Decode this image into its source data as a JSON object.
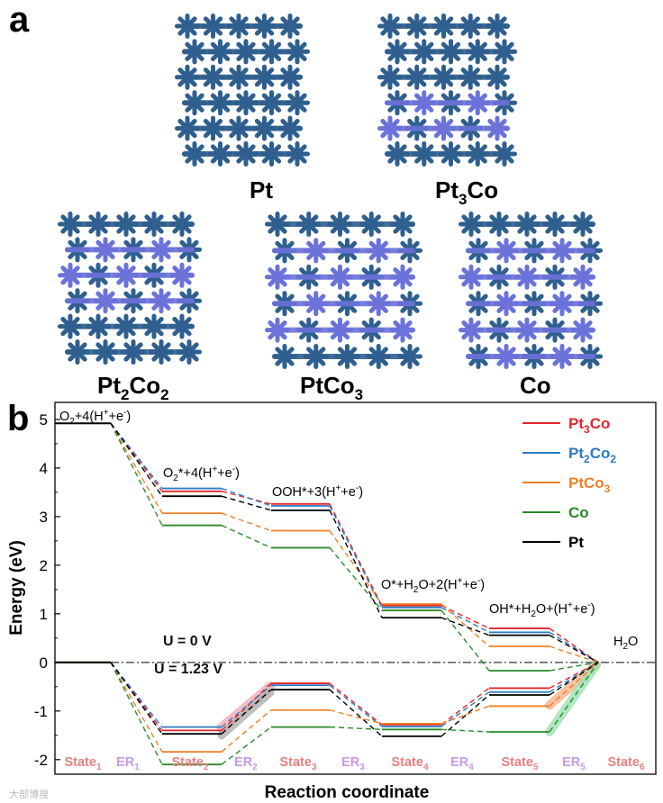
{
  "panel_a": {
    "label": "a",
    "structures": [
      {
        "name": "Pt",
        "sub": ""
      },
      {
        "name": "Pt",
        "sub": "3",
        "tail": "Co"
      },
      {
        "name": "Pt",
        "sub": "2",
        "mid": "Co",
        "sub2": "2"
      },
      {
        "name": "PtCo",
        "sub": "3"
      },
      {
        "name": "Co",
        "sub": ""
      }
    ],
    "colors": {
      "pt": "#2f5f8f",
      "co": "#6b72d9"
    }
  },
  "chart_data": {
    "type": "line",
    "panel_label": "b",
    "xlabel": "Reaction coordinate",
    "ylabel": "Energy (eV)",
    "ylim": [
      -2.3,
      5.35
    ],
    "yticks": [
      -2,
      -1,
      0,
      1,
      2,
      3,
      4,
      5
    ],
    "states": [
      "State1",
      "State2",
      "State3",
      "State4",
      "State5",
      "State6"
    ],
    "x_labels": [
      {
        "text": "State",
        "sub": "1",
        "kind": "state"
      },
      {
        "text": "ER",
        "sub": "1",
        "kind": "er"
      },
      {
        "text": "State",
        "sub": "2",
        "kind": "state"
      },
      {
        "text": "ER",
        "sub": "2",
        "kind": "er"
      },
      {
        "text": "State",
        "sub": "3",
        "kind": "state"
      },
      {
        "text": "ER",
        "sub": "3",
        "kind": "er"
      },
      {
        "text": "State",
        "sub": "4",
        "kind": "state"
      },
      {
        "text": "ER",
        "sub": "4",
        "kind": "er"
      },
      {
        "text": "State",
        "sub": "5",
        "kind": "state"
      },
      {
        "text": "ER",
        "sub": "5",
        "kind": "er"
      },
      {
        "text": "State",
        "sub": "6",
        "kind": "state"
      }
    ],
    "series_u0": [
      {
        "name": "Pt3Co",
        "color": "#e3242b",
        "values": [
          4.92,
          3.52,
          3.26,
          1.17,
          0.7,
          0.0
        ]
      },
      {
        "name": "Pt2Co2",
        "color": "#2b7bc4",
        "values": [
          4.92,
          3.58,
          3.22,
          1.13,
          0.62,
          0.0
        ]
      },
      {
        "name": "PtCo3",
        "color": "#f07f26",
        "values": [
          4.92,
          3.07,
          2.71,
          1.2,
          0.33,
          0.0
        ]
      },
      {
        "name": "Co",
        "color": "#2a8a2a",
        "values": [
          4.92,
          2.82,
          2.36,
          1.07,
          -0.17,
          0.0
        ]
      },
      {
        "name": "Pt",
        "color": "#000000",
        "values": [
          4.92,
          3.42,
          3.13,
          0.92,
          0.56,
          0.0
        ]
      }
    ],
    "series_u123": [
      {
        "name": "Pt3Co",
        "color": "#e3242b",
        "values": [
          0.0,
          -1.4,
          -0.43,
          -1.28,
          -0.53,
          0.0
        ]
      },
      {
        "name": "Pt2Co2",
        "color": "#2b7bc4",
        "values": [
          0.0,
          -1.33,
          -0.47,
          -1.32,
          -0.61,
          0.0
        ]
      },
      {
        "name": "PtCo3",
        "color": "#f07f26",
        "values": [
          0.0,
          -1.84,
          -0.98,
          -1.26,
          -0.9,
          0.0
        ]
      },
      {
        "name": "Co",
        "color": "#2a8a2a",
        "values": [
          0.0,
          -2.1,
          -1.33,
          -1.38,
          -1.43,
          0.0
        ]
      },
      {
        "name": "Pt",
        "color": "#000000",
        "values": [
          0.0,
          -1.47,
          -0.56,
          -1.52,
          -0.67,
          0.0
        ]
      }
    ],
    "legend": [
      {
        "text": "Pt",
        "sub": "3",
        "tail": "Co",
        "color": "#e3242b"
      },
      {
        "text": "Pt",
        "sub": "2",
        "tail": "Co",
        "sub2": "2",
        "color": "#2b7bc4"
      },
      {
        "text": "PtCo",
        "sub": "3",
        "tail": "",
        "color": "#f07f26"
      },
      {
        "text": "Co",
        "sub": "",
        "tail": "",
        "color": "#2a8a2a"
      },
      {
        "text": "Pt",
        "sub": "",
        "tail": "",
        "color": "#000000"
      }
    ],
    "legend_placement": "top-right",
    "annotations": [
      {
        "id": "o2",
        "text": "O2+4(H++e-)"
      },
      {
        "id": "o2star",
        "text": "O2*+4(H++e-)"
      },
      {
        "id": "ooh",
        "text": "OOH*+3(H++e-)"
      },
      {
        "id": "ostar",
        "text": "O*+H2O+2(H++e-)"
      },
      {
        "id": "oh",
        "text": "OH*+H2O+(H++e-)"
      },
      {
        "id": "h2o",
        "text": "H2O"
      },
      {
        "id": "u0",
        "text": "U = 0 V"
      },
      {
        "id": "u123",
        "text": "U = 1.23 V"
      }
    ]
  },
  "watermark": "大部博搜"
}
